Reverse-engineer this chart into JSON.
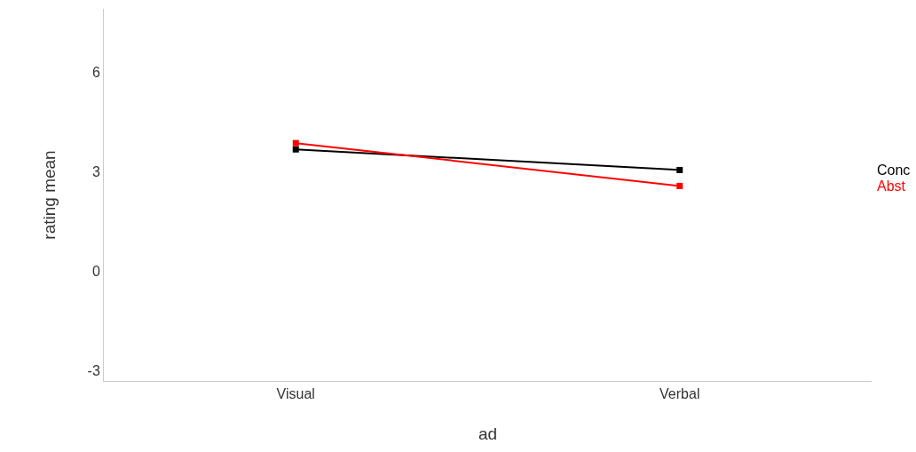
{
  "chart_data": {
    "type": "line",
    "xlabel": "ad",
    "ylabel": "rating mean",
    "categories": [
      "Visual",
      "Verbal"
    ],
    "series": [
      {
        "name": "Conc",
        "color": "#000000",
        "values": [
          3.67,
          3.05
        ]
      },
      {
        "name": "Abst",
        "color": "#ff0000",
        "values": [
          3.86,
          2.57
        ]
      }
    ],
    "ylim": [
      -3.3,
      7.9
    ],
    "yticks": [
      -3,
      0,
      3,
      6
    ],
    "grid": false,
    "marker": "square",
    "line_style": "solid"
  }
}
